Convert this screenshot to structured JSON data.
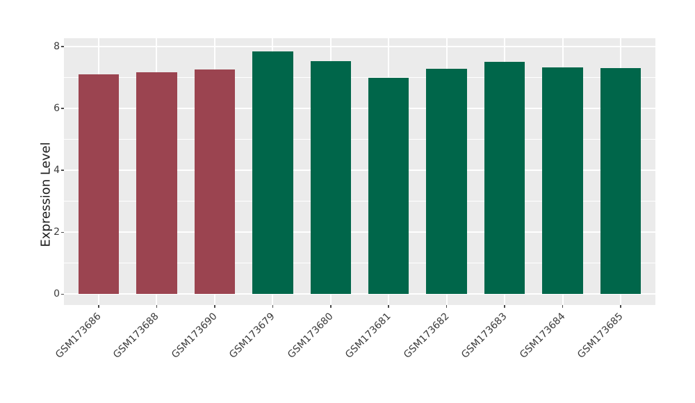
{
  "figure": {
    "background_color": "#ffffff",
    "panel_background_color": "#EBEBEB",
    "grid_color": "#ffffff",
    "tick_text_color": "#3a3a3a",
    "axis_title_color": "#1a1a1a"
  },
  "chart_data": {
    "type": "bar",
    "title": "",
    "xlabel": "",
    "ylabel": "Expression Level",
    "categories": [
      "GSM173686",
      "GSM173688",
      "GSM173690",
      "GSM173679",
      "GSM173680",
      "GSM173681",
      "GSM173682",
      "GSM173683",
      "GSM173684",
      "GSM173685"
    ],
    "values": [
      7.1,
      7.17,
      7.26,
      7.85,
      7.54,
      7.0,
      7.29,
      7.51,
      7.33,
      7.3
    ],
    "bar_colors": [
      "#9B4450",
      "#9B4450",
      "#9B4450",
      "#00664A",
      "#00664A",
      "#00664A",
      "#00664A",
      "#00664A",
      "#00664A",
      "#00664A"
    ],
    "group_colors": {
      "left_group": "#9B4450",
      "right_group": "#00664A"
    },
    "yticks": [
      0,
      2,
      4,
      6,
      8
    ],
    "ytick_labels": [
      "0",
      "2",
      "4",
      "6",
      "8"
    ],
    "minor_yticks": [
      1,
      3,
      5,
      7
    ],
    "ylim": [
      -0.35,
      8.27
    ],
    "bar_width_fraction": 0.7,
    "x_label_rotation_deg": 45,
    "legend_position": "none",
    "grid": {
      "horizontal_major": true,
      "horizontal_minor": true,
      "vertical_major_at_categories": true,
      "vertical_minor": false
    }
  }
}
